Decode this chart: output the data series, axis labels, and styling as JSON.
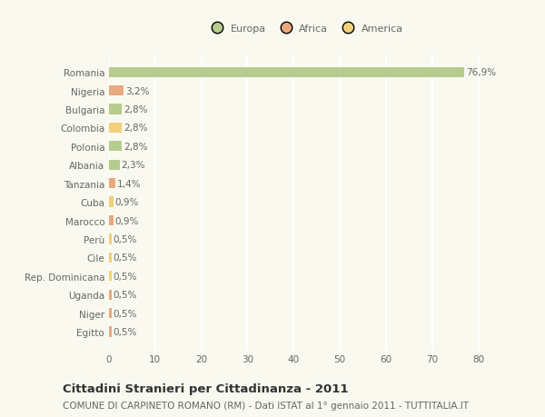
{
  "categories": [
    "Romania",
    "Nigeria",
    "Bulgaria",
    "Colombia",
    "Polonia",
    "Albania",
    "Tanzania",
    "Cuba",
    "Marocco",
    "Perù",
    "Cile",
    "Rep. Dominicana",
    "Uganda",
    "Niger",
    "Egitto"
  ],
  "values": [
    76.9,
    3.2,
    2.8,
    2.8,
    2.8,
    2.3,
    1.4,
    0.9,
    0.9,
    0.5,
    0.5,
    0.5,
    0.5,
    0.5,
    0.5
  ],
  "labels": [
    "76,9%",
    "3,2%",
    "2,8%",
    "2,8%",
    "2,8%",
    "2,3%",
    "1,4%",
    "0,9%",
    "0,9%",
    "0,5%",
    "0,5%",
    "0,5%",
    "0,5%",
    "0,5%",
    "0,5%"
  ],
  "continent": [
    "Europa",
    "Africa",
    "Europa",
    "America",
    "Europa",
    "Europa",
    "Africa",
    "America",
    "Africa",
    "America",
    "America",
    "America",
    "Africa",
    "Africa",
    "Africa"
  ],
  "colors": {
    "Europa": "#b5cc8e",
    "Africa": "#e8a97e",
    "America": "#f0d07a"
  },
  "legend_items": [
    "Europa",
    "Africa",
    "America"
  ],
  "legend_colors": [
    "#b5cc8e",
    "#e8a97e",
    "#f0d07a"
  ],
  "xlim": [
    0,
    85
  ],
  "xticks": [
    0,
    10,
    20,
    30,
    40,
    50,
    60,
    70,
    80
  ],
  "title1": "Cittadini Stranieri per Cittadinanza - 2011",
  "title2": "COMUNE DI CARPINETO ROMANO (RM) - Dati ISTAT al 1° gennaio 2011 - TUTTITALIA.IT",
  "background_color": "#f9f9f0",
  "grid_color": "#ffffff",
  "bar_height": 0.55,
  "label_fontsize": 7.5,
  "tick_fontsize": 7.5,
  "title1_fontsize": 9.5,
  "title2_fontsize": 7.5,
  "text_color": "#666666"
}
